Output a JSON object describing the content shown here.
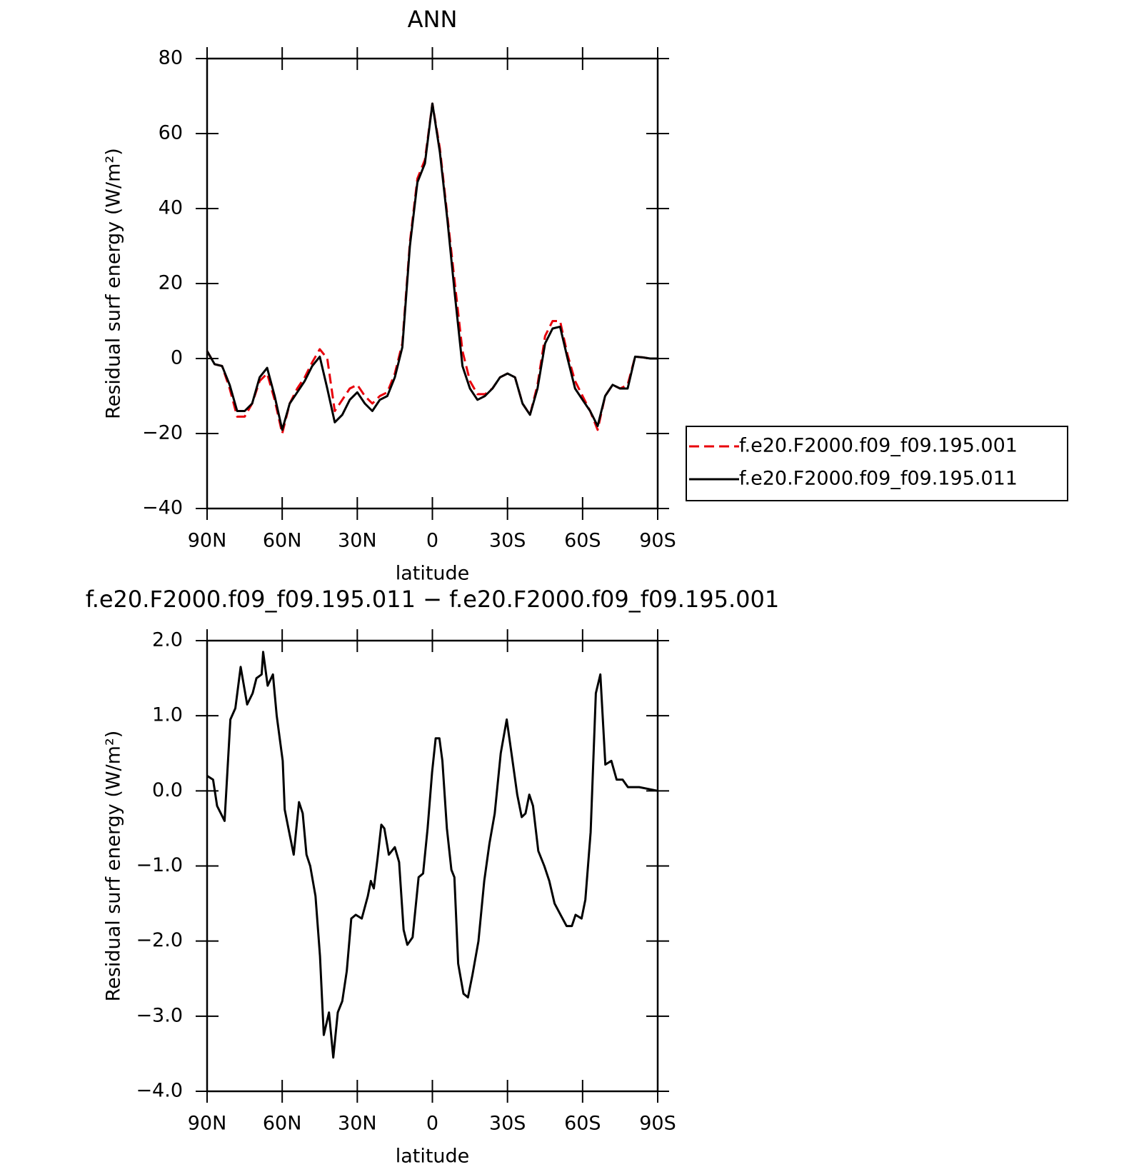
{
  "chart_data": [
    {
      "type": "line",
      "title": "ANN",
      "xlabel": "latitude",
      "ylabel": "Residual surf energy (W/m²)",
      "x": [
        90,
        87,
        84,
        81,
        78,
        75,
        72,
        69,
        66,
        63,
        60,
        57,
        54,
        51,
        48,
        45,
        42,
        39,
        36,
        33,
        30,
        27,
        24,
        21,
        18,
        15,
        12,
        9,
        6,
        3,
        0,
        -3,
        -6,
        -9,
        -12,
        -15,
        -18,
        -21,
        -24,
        -27,
        -30,
        -33,
        -36,
        -39,
        -42,
        -45,
        -48,
        -51,
        -54,
        -57,
        -60,
        -63,
        -66,
        -69,
        -72,
        -75,
        -78,
        -81,
        -84,
        -87,
        -90
      ],
      "series": [
        {
          "name": "f.e20.F2000.f09_f09.195.001",
          "color": "#e8000b",
          "style": "dashed",
          "values": [
            2,
            -1.5,
            -2,
            -8,
            -15.5,
            -15.5,
            -12,
            -6,
            -4,
            -11,
            -20,
            -12,
            -8,
            -5,
            -1,
            2.5,
            0,
            -14,
            -11,
            -8,
            -7,
            -10,
            -12,
            -10,
            -9,
            -4,
            4,
            31,
            48,
            53,
            68,
            56,
            38,
            20,
            2,
            -6,
            -9.5,
            -9.5,
            -8,
            -5,
            -4,
            -5,
            -12,
            -15,
            -7,
            6,
            10,
            10,
            1,
            -6,
            -10,
            -14,
            -19,
            -10,
            -7,
            -8,
            -7,
            0.5,
            0.3,
            0,
            0
          ]
        },
        {
          "name": "f.e20.F2000.f09_f09.195.011",
          "color": "#000000",
          "style": "solid",
          "values": [
            2,
            -1.5,
            -2,
            -7,
            -14,
            -14,
            -12,
            -5,
            -2.5,
            -10,
            -19,
            -12,
            -9,
            -6,
            -2,
            0.5,
            -8,
            -17,
            -15,
            -11,
            -9,
            -12,
            -14,
            -11,
            -10,
            -5,
            3,
            30,
            47,
            52,
            68,
            55,
            37,
            17,
            -2,
            -8,
            -11,
            -10,
            -8,
            -5,
            -4,
            -5,
            -12,
            -15,
            -8,
            4,
            8,
            8.5,
            0,
            -8,
            -11,
            -14,
            -18,
            -10,
            -7,
            -8,
            -8,
            0.5,
            0.3,
            0,
            0
          ]
        }
      ],
      "xlim": [
        90,
        -90
      ],
      "xticks": [
        {
          "value": 90,
          "label": "90N"
        },
        {
          "value": 60,
          "label": "60N"
        },
        {
          "value": 30,
          "label": "30N"
        },
        0,
        {
          "value": -30,
          "label": "30S"
        },
        {
          "value": -60,
          "label": "60S"
        },
        {
          "value": -90,
          "label": "90S"
        }
      ],
      "ylim": [
        -40,
        80
      ],
      "yticks": [
        {
          "value": -40,
          "label": "−40"
        },
        {
          "value": -20,
          "label": "−20"
        },
        0,
        20,
        40,
        60,
        80
      ],
      "legend": "right"
    },
    {
      "type": "line",
      "title": "f.e20.F2000.f09_f09.195.011 − f.e20.F2000.f09_f09.195.001",
      "xlabel": "latitude",
      "ylabel": "Residual surf energy (W/m²)",
      "x": [
        90,
        87.6,
        86,
        83,
        80.7,
        78.7,
        76.6,
        74,
        71.8,
        70.3,
        68.2,
        67.6,
        65.8,
        63.7,
        62.2,
        59.8,
        59,
        57.5,
        55.4,
        53.3,
        51.8,
        50.3,
        48.8,
        46.7,
        44.9,
        43.4,
        41.3,
        39.6,
        37.8,
        36,
        34.2,
        32.4,
        30.6,
        28.2,
        25.8,
        24.6,
        23.4,
        21.9,
        20.4,
        19.2,
        17.4,
        15,
        13.3,
        11.5,
        10,
        7.9,
        5.5,
        3.7,
        1.9,
        0.1,
        -1.3,
        -2.8,
        -4,
        -5.8,
        -7.6,
        -8.8,
        -10.3,
        -12.4,
        -14.2,
        -16,
        -18.4,
        -20.7,
        -22.8,
        -24.9,
        -27.3,
        -29.7,
        -31.8,
        -33.9,
        -35.7,
        -37.2,
        -38.7,
        -40.2,
        -42.3,
        -44.7,
        -46.7,
        -48.8,
        -51.2,
        -53.6,
        -55.7,
        -57.2,
        -59.6,
        -61.1,
        -63.2,
        -65.3,
        -67.1,
        -69.1,
        -71.5,
        -73.6,
        -76,
        -78.1,
        -82.6,
        -87,
        -90
      ],
      "series": [
        {
          "color": "#000000",
          "style": "solid",
          "values": [
            0.2,
            0.15,
            -0.2,
            -0.4,
            0.95,
            1.1,
            1.65,
            1.15,
            1.3,
            1.5,
            1.55,
            1.85,
            1.4,
            1.55,
            1.0,
            0.4,
            -0.25,
            -0.5,
            -0.85,
            -0.15,
            -0.3,
            -0.85,
            -1.0,
            -1.4,
            -2.2,
            -3.25,
            -2.95,
            -3.55,
            -2.95,
            -2.8,
            -2.4,
            -1.7,
            -1.65,
            -1.7,
            -1.4,
            -1.2,
            -1.3,
            -0.9,
            -0.45,
            -0.5,
            -0.85,
            -0.75,
            -0.95,
            -1.85,
            -2.05,
            -1.95,
            -1.15,
            -1.1,
            -0.5,
            0.25,
            0.7,
            0.7,
            0.4,
            -0.5,
            -1.05,
            -1.15,
            -2.3,
            -2.7,
            -2.75,
            -2.45,
            -2.0,
            -1.2,
            -0.7,
            -0.3,
            0.5,
            0.95,
            0.45,
            -0.05,
            -0.35,
            -0.3,
            -0.05,
            -0.2,
            -0.8,
            -1.0,
            -1.2,
            -1.5,
            -1.65,
            -1.8,
            -1.8,
            -1.65,
            -1.7,
            -1.45,
            -0.55,
            1.3,
            1.55,
            0.35,
            0.4,
            0.15,
            0.15,
            0.05,
            0.05,
            0.02,
            0.0
          ]
        }
      ],
      "xlim": [
        90,
        -90
      ],
      "xticks": [
        {
          "value": 90,
          "label": "90N"
        },
        {
          "value": 60,
          "label": "60N"
        },
        {
          "value": 30,
          "label": "30N"
        },
        0,
        {
          "value": -30,
          "label": "30S"
        },
        {
          "value": -60,
          "label": "60S"
        },
        {
          "value": -90,
          "label": "90S"
        }
      ],
      "ylim": [
        -4,
        2
      ],
      "yticks": [
        {
          "value": -4,
          "label": "−4.0"
        },
        {
          "value": -3,
          "label": "−3.0"
        },
        {
          "value": -2,
          "label": "−2.0"
        },
        {
          "value": -1,
          "label": "−1.0"
        },
        {
          "value": 0,
          "label": "0.0"
        },
        {
          "value": 1,
          "label": "1.0"
        },
        {
          "value": 2,
          "label": "2.0"
        }
      ]
    }
  ]
}
